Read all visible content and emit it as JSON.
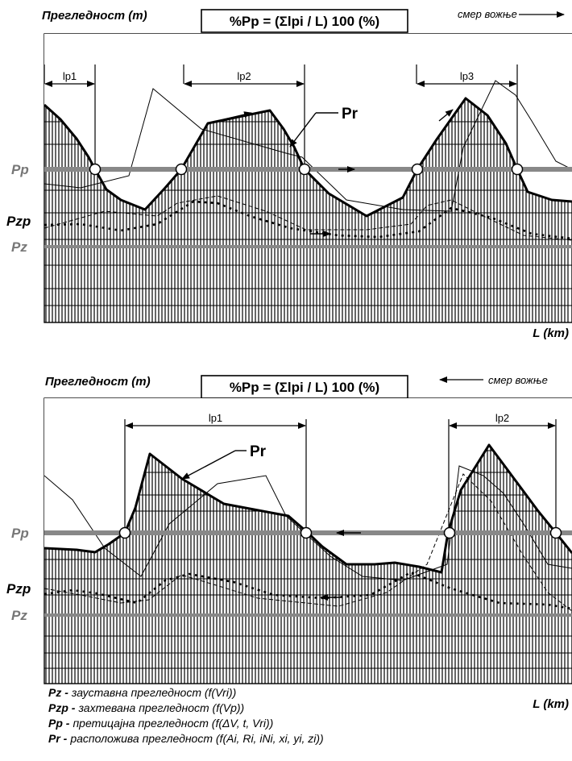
{
  "diagrams": [
    {
      "ylabel": "Прегледност (m)",
      "formula": "%Pp = (Σlpi / L) 100  (%)",
      "direction": "смер вожње",
      "xlabel": "L (km)",
      "segments": [
        "lp1",
        "lp2",
        "lp3"
      ],
      "curve_label": "Pr",
      "levels": [
        "Pp",
        "Pzp",
        "Pz"
      ]
    },
    {
      "ylabel": "Прегледност (m)",
      "formula": "%Pp = (Σlpi / L) 100  (%)",
      "direction": "смер вожње",
      "xlabel": "L (km)",
      "segments": [
        "lp1",
        "lp2"
      ],
      "curve_label": "Pr",
      "levels": [
        "Pp",
        "Pzp",
        "Pz"
      ]
    }
  ],
  "legend": [
    {
      "key": "Pz -",
      "desc": "зауставна прегледност (f(Vri))"
    },
    {
      "key": "Pzp -",
      "desc": "захтевана прегледност (f(Vp))"
    },
    {
      "key": "Pp -",
      "desc": "претицајна прегледност (f(ΔV, t, Vri))"
    },
    {
      "key": "Pr -",
      "desc": "расположива прегледност (f(Ai, Ri, iNi, xi, yi, zi))"
    }
  ]
}
